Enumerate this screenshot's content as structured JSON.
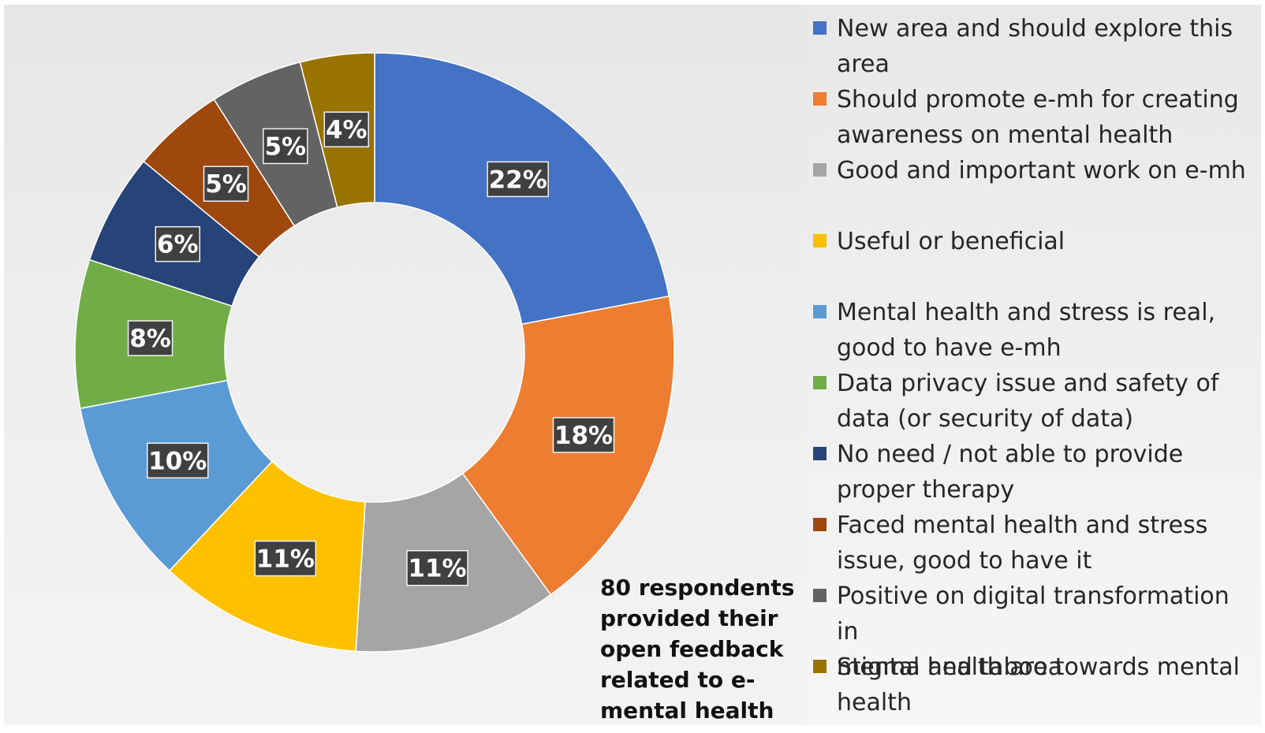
{
  "chart_data": {
    "type": "pie",
    "variant": "donut",
    "legend_position": "right",
    "slices": [
      {
        "label": "New area and should explore this area",
        "value": 22,
        "value_label": "22%",
        "color": "#4472C4"
      },
      {
        "label": "Should promote e-mh for creating awareness on mental health",
        "value": 18,
        "value_label": "18%",
        "color": "#ED7D31"
      },
      {
        "label": "Good and important work on e-mh",
        "value": 11,
        "value_label": "11%",
        "color": "#A5A5A5"
      },
      {
        "label": "Useful or beneficial",
        "value": 11,
        "value_label": "11%",
        "color": "#FFC000"
      },
      {
        "label": "Mental health and stress is real, good to have e-mh",
        "value": 10,
        "value_label": "10%",
        "color": "#5B9BD5"
      },
      {
        "label": "Data privacy issue and safety of data (or security of data)",
        "value": 8,
        "value_label": "8%",
        "color": "#70AD47"
      },
      {
        "label": "No need / not able to provide proper therapy",
        "value": 6,
        "value_label": "6%",
        "color": "#264478"
      },
      {
        "label": "Faced mental health and stress issue, good to have it",
        "value": 5,
        "value_label": "5%",
        "color": "#9E480E"
      },
      {
        "label": "Positive on digital transformation in mental health area",
        "value": 5,
        "value_label": "5%",
        "color": "#636363"
      },
      {
        "label": "Stigma and taboo towards mental health",
        "value": 4,
        "value_label": "4%",
        "color": "#997300"
      }
    ],
    "annotation": "80 respondents provided their open feedback related to e-mental health"
  },
  "legend": {
    "items": [
      {
        "lines": [
          "New area and should explore this",
          "area"
        ]
      },
      {
        "lines": [
          "Should promote e-mh for creating",
          "awareness on mental health"
        ]
      },
      {
        "lines": [
          "Good and important work on e-mh"
        ]
      },
      {
        "lines": [
          "Useful or beneficial"
        ]
      },
      {
        "lines": [
          "Mental health and stress is real,",
          "good to have e-mh"
        ]
      },
      {
        "lines": [
          "Data privacy issue and safety of",
          "data (or security of data)"
        ]
      },
      {
        "lines": [
          "No need / not able to provide",
          "proper therapy"
        ]
      },
      {
        "lines": [
          "Faced mental health and stress",
          "issue, good to have it"
        ]
      },
      {
        "lines": [
          "Positive on digital transformation in",
          "mental health area"
        ]
      },
      {
        "lines": [
          "Stigma and taboo towards mental",
          "health"
        ]
      }
    ]
  },
  "annotation_lines": [
    "80 respondents",
    "provided their",
    "open feedback",
    "related to e-",
    "mental health"
  ]
}
